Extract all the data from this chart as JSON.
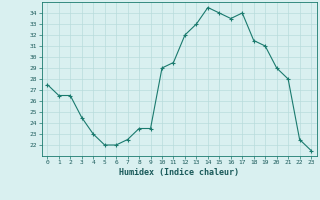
{
  "x": [
    0,
    1,
    2,
    3,
    4,
    5,
    6,
    7,
    8,
    9,
    10,
    11,
    12,
    13,
    14,
    15,
    16,
    17,
    18,
    19,
    20,
    21,
    22,
    23
  ],
  "y": [
    27.5,
    26.5,
    26.5,
    24.5,
    23.0,
    22.0,
    22.0,
    22.5,
    23.5,
    23.5,
    29.0,
    29.5,
    32.0,
    33.0,
    34.5,
    34.0,
    33.5,
    34.0,
    31.5,
    31.0,
    29.0,
    28.0,
    22.5,
    21.5
  ],
  "xlabel": "Humidex (Indice chaleur)",
  "ylabel": "",
  "ylim": [
    21.0,
    35.0
  ],
  "xlim": [
    -0.5,
    23.5
  ],
  "line_color": "#1a7a6e",
  "marker": "+",
  "bg_color": "#d9f0f0",
  "grid_color": "#b8dcdc",
  "tick_label_color": "#1a5a5a",
  "yticks": [
    22,
    23,
    24,
    25,
    26,
    27,
    28,
    29,
    30,
    31,
    32,
    33,
    34
  ],
  "xticks": [
    0,
    1,
    2,
    3,
    4,
    5,
    6,
    7,
    8,
    9,
    10,
    11,
    12,
    13,
    14,
    15,
    16,
    17,
    18,
    19,
    20,
    21,
    22,
    23
  ]
}
